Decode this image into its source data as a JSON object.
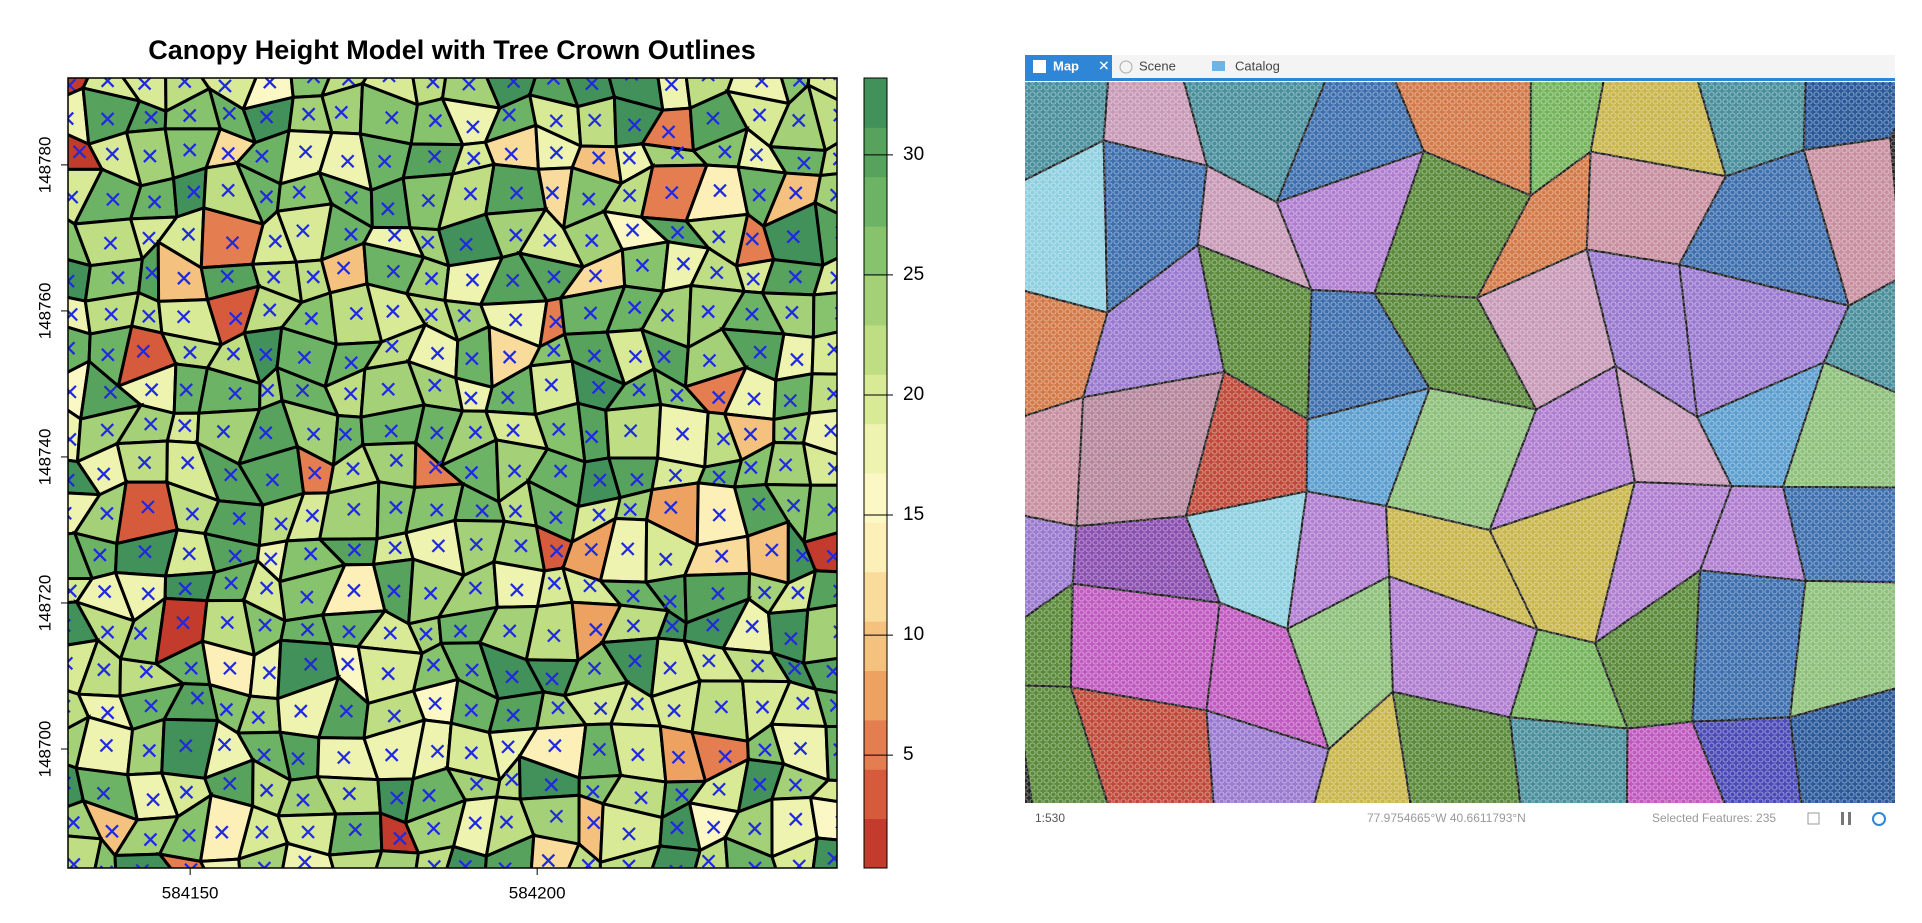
{
  "chart_data": {
    "type": "raster",
    "title": "Canopy Height Model with Tree Crown Outlines",
    "xlim": [
      584132.4,
      584243.2
    ],
    "xticks": [
      584150,
      584200
    ],
    "ylim": [
      148683.7,
      148791.9
    ],
    "yticks": [
      148700,
      148720,
      148740,
      148760,
      148780
    ],
    "clim": [
      0.3,
      33.2
    ],
    "cticks": [
      5,
      10,
      15,
      20,
      25,
      30
    ],
    "colors": [
      "#c23b2c",
      "#d65a3c",
      "#e47d50",
      "#eda262",
      "#f4c27e",
      "#f9dc9c",
      "#fcefb8",
      "#fbf8c6",
      "#eef3b0",
      "#d8ea95",
      "#bfdd83",
      "#a4d077",
      "#87c26d",
      "#6db365",
      "#57a35d",
      "#43915a"
    ],
    "marker_color": "#1f2ae0"
  },
  "ui": {
    "tabs": [
      "Map",
      "Scene",
      "Catalog"
    ],
    "scale": "1:530",
    "coordinates": "77.9754665°W 40.6611793°N",
    "selection": "Selected Features: 235"
  }
}
